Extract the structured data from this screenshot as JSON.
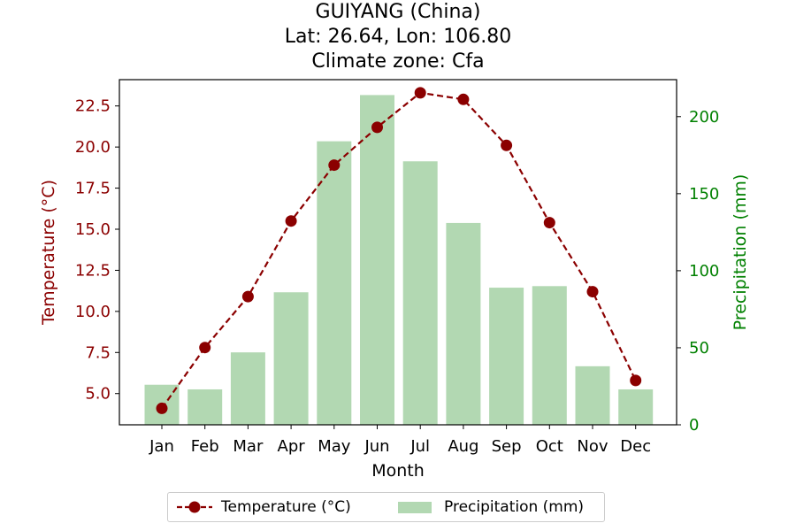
{
  "title": {
    "line1": "GUIYANG (China)",
    "line2": "Lat: 26.64, Lon: 106.80",
    "line3": "Climate zone: Cfa"
  },
  "colors": {
    "temperature": "#8b0000",
    "precipitation_fill": "#b2d8b2",
    "precipitation_axis": "#008000"
  },
  "chart_data": {
    "type": "bar+line",
    "categories": [
      "Jan",
      "Feb",
      "Mar",
      "Apr",
      "May",
      "Jun",
      "Jul",
      "Aug",
      "Sep",
      "Oct",
      "Nov",
      "Dec"
    ],
    "xlabel": "Month",
    "series": [
      {
        "name": "Temperature (°C)",
        "type": "line",
        "axis": "left",
        "style": "dashed with circle markers",
        "values": [
          4.1,
          7.8,
          10.9,
          15.5,
          18.9,
          21.2,
          23.3,
          22.9,
          20.1,
          15.4,
          11.2,
          5.8
        ]
      },
      {
        "name": "Precipitation (mm)",
        "type": "bar",
        "axis": "right",
        "values": [
          26,
          23,
          47,
          86,
          184,
          214,
          171,
          131,
          89,
          90,
          38,
          23
        ]
      }
    ],
    "y_left": {
      "label": "Temperature (°C)",
      "ylim": [
        3.1,
        24.1
      ],
      "ticks": [
        "5.0",
        "7.5",
        "10.0",
        "12.5",
        "15.0",
        "17.5",
        "20.0",
        "22.5"
      ]
    },
    "y_right": {
      "label": "Precipitation (mm)",
      "ylim": [
        0,
        224
      ],
      "ticks": [
        "0",
        "50",
        "100",
        "150",
        "200"
      ]
    },
    "grid": false,
    "legend_position": "bottom-center"
  }
}
